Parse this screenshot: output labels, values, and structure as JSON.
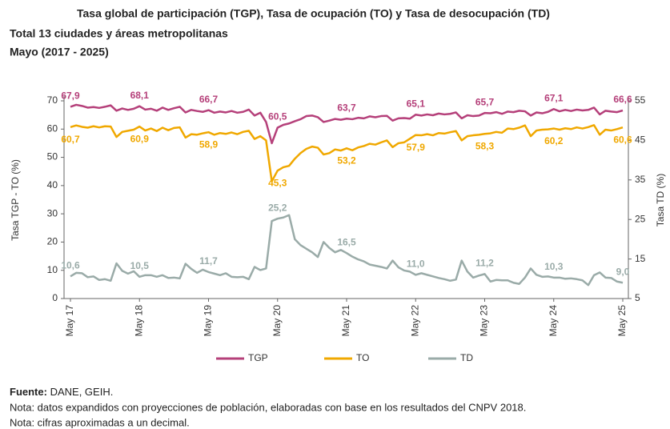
{
  "chart_data": {
    "type": "line",
    "title": "Tasa global de participación (TGP), Tasa de ocupación (TO) y Tasa de desocupación (TD)",
    "subtitle": [
      "Total 13 ciudades y áreas metropolitanas",
      "Mayo (2017 - 2025)"
    ],
    "ylabel": "Tasa TGP - TO (%)",
    "y2label": "Tasa TD (%)",
    "categories": [
      "May 17",
      null,
      null,
      null,
      null,
      null,
      null,
      null,
      null,
      null,
      null,
      null,
      "May 18",
      null,
      null,
      null,
      null,
      null,
      null,
      null,
      null,
      null,
      null,
      null,
      "May 19",
      null,
      null,
      null,
      null,
      null,
      null,
      null,
      null,
      null,
      null,
      null,
      "May 20",
      null,
      null,
      null,
      null,
      null,
      null,
      null,
      null,
      null,
      null,
      null,
      "May 21",
      null,
      null,
      null,
      null,
      null,
      null,
      null,
      null,
      null,
      null,
      null,
      "May 22",
      null,
      null,
      null,
      null,
      null,
      null,
      null,
      null,
      null,
      null,
      null,
      "May 23",
      null,
      null,
      null,
      null,
      null,
      null,
      null,
      null,
      null,
      null,
      null,
      "May 24",
      null,
      null,
      null,
      null,
      null,
      null,
      null,
      null,
      null,
      null,
      null,
      "May 25"
    ],
    "ylim": [
      0,
      70
    ],
    "yticks": [
      0,
      10,
      20,
      30,
      40,
      50,
      60,
      70
    ],
    "y2lim": [
      5,
      55
    ],
    "y2ticks": [
      5,
      15,
      25,
      35,
      45,
      55
    ],
    "grid": false,
    "legend": "bottom",
    "series": [
      {
        "name": "TGP",
        "color": "#b5407a",
        "values": [
          67.9,
          68.6,
          68.2,
          67.6,
          67.8,
          67.5,
          67.9,
          68.4,
          66.5,
          67.3,
          66.8,
          67.2,
          68.1,
          66.9,
          67.2,
          66.5,
          67.6,
          66.8,
          67.4,
          67.9,
          65.9,
          66.8,
          66.4,
          66.1,
          66.7,
          65.8,
          66.2,
          65.9,
          66.4,
          65.8,
          66.1,
          66.9,
          64.8,
          65.8,
          62.5,
          55.0,
          60.5,
          61.5,
          62.0,
          62.8,
          63.5,
          64.6,
          64.8,
          64.2,
          62.5,
          63.0,
          63.6,
          63.3,
          63.7,
          63.5,
          64.0,
          63.8,
          64.5,
          64.2,
          64.6,
          64.7,
          63.0,
          63.8,
          63.9,
          63.7,
          65.1,
          64.8,
          65.2,
          64.9,
          65.5,
          65.2,
          65.4,
          65.9,
          63.8,
          64.9,
          64.6,
          64.8,
          65.7,
          65.6,
          66.0,
          65.4,
          66.2,
          66.0,
          66.5,
          66.3,
          64.8,
          65.9,
          65.6,
          66.1,
          67.1,
          66.3,
          66.8,
          66.4,
          66.9,
          66.6,
          66.8,
          67.6,
          65.2,
          66.5,
          66.2,
          66.0,
          66.6
        ],
        "value_labels": [
          "67,9",
          null,
          null,
          null,
          null,
          null,
          null,
          null,
          null,
          null,
          null,
          null,
          "68,1",
          null,
          null,
          null,
          null,
          null,
          null,
          null,
          null,
          null,
          null,
          null,
          "66,7",
          null,
          null,
          null,
          null,
          null,
          null,
          null,
          null,
          null,
          null,
          null,
          "60,5",
          null,
          null,
          null,
          null,
          null,
          null,
          null,
          null,
          null,
          null,
          null,
          "63,7",
          null,
          null,
          null,
          null,
          null,
          null,
          null,
          null,
          null,
          null,
          null,
          "65,1",
          null,
          null,
          null,
          null,
          null,
          null,
          null,
          null,
          null,
          null,
          null,
          "65,7",
          null,
          null,
          null,
          null,
          null,
          null,
          null,
          null,
          null,
          null,
          null,
          "67,1",
          null,
          null,
          null,
          null,
          null,
          null,
          null,
          null,
          null,
          null,
          null,
          "66,6"
        ]
      },
      {
        "name": "TO",
        "color": "#f0a800",
        "values": [
          60.7,
          61.3,
          60.8,
          60.5,
          61.0,
          60.6,
          61.0,
          60.9,
          57.2,
          59.0,
          59.4,
          59.8,
          60.9,
          59.5,
          60.2,
          59.3,
          60.5,
          59.6,
          60.4,
          60.6,
          57.0,
          58.2,
          58.0,
          58.5,
          58.9,
          58.0,
          58.6,
          58.3,
          58.8,
          58.2,
          59.0,
          59.4,
          56.5,
          57.5,
          56.0,
          41.5,
          45.3,
          46.5,
          47.0,
          49.5,
          51.5,
          53.0,
          53.8,
          53.4,
          51.0,
          51.5,
          52.8,
          52.4,
          53.2,
          52.5,
          53.5,
          54.0,
          54.8,
          54.5,
          55.3,
          56.0,
          53.6,
          55.0,
          55.3,
          56.6,
          57.9,
          57.8,
          58.2,
          57.8,
          58.6,
          58.4,
          58.9,
          59.3,
          56.0,
          57.5,
          57.8,
          58.0,
          58.3,
          58.5,
          59.0,
          58.7,
          60.2,
          60.0,
          60.5,
          61.3,
          57.5,
          59.5,
          59.8,
          59.9,
          60.2,
          59.8,
          60.3,
          60.0,
          60.6,
          60.2,
          60.7,
          61.4,
          58.0,
          59.8,
          59.5,
          60.0,
          60.6
        ],
        "value_labels": [
          "60,7",
          null,
          null,
          null,
          null,
          null,
          null,
          null,
          null,
          null,
          null,
          null,
          "60,9",
          null,
          null,
          null,
          null,
          null,
          null,
          null,
          null,
          null,
          null,
          null,
          "58,9",
          null,
          null,
          null,
          null,
          null,
          null,
          null,
          null,
          null,
          null,
          null,
          "45,3",
          null,
          null,
          null,
          null,
          null,
          null,
          null,
          null,
          null,
          null,
          null,
          "53,2",
          null,
          null,
          null,
          null,
          null,
          null,
          null,
          null,
          null,
          null,
          null,
          "57,9",
          null,
          null,
          null,
          null,
          null,
          null,
          null,
          null,
          null,
          null,
          null,
          "58,3",
          null,
          null,
          null,
          null,
          null,
          null,
          null,
          null,
          null,
          null,
          null,
          "60,2",
          null,
          null,
          null,
          null,
          null,
          null,
          null,
          null,
          null,
          null,
          null,
          "60,6"
        ]
      },
      {
        "name": "TD",
        "color": "#9aaba8",
        "axis": "y2",
        "values": [
          10.6,
          11.5,
          11.4,
          10.4,
          10.6,
          9.7,
          9.9,
          9.5,
          13.9,
          12.0,
          11.3,
          11.9,
          10.5,
          10.9,
          10.9,
          10.5,
          10.9,
          10.2,
          10.3,
          10.1,
          13.8,
          12.5,
          11.5,
          12.3,
          11.7,
          11.3,
          10.9,
          11.4,
          10.5,
          10.4,
          10.5,
          9.9,
          13.0,
          12.2,
          12.6,
          24.6,
          25.2,
          25.5,
          26.1,
          20.0,
          18.5,
          17.6,
          16.7,
          15.5,
          19.3,
          17.8,
          16.7,
          17.3,
          16.5,
          15.6,
          14.9,
          14.4,
          13.6,
          13.3,
          13.0,
          12.6,
          14.6,
          12.9,
          12.1,
          11.8,
          11.0,
          11.4,
          11.0,
          10.6,
          10.2,
          9.9,
          9.5,
          9.8,
          14.6,
          11.8,
          10.3,
          10.8,
          11.2,
          9.3,
          9.7,
          9.6,
          9.6,
          9.0,
          8.7,
          10.3,
          12.6,
          11.0,
          10.5,
          10.6,
          10.3,
          10.3,
          10.0,
          10.1,
          9.9,
          9.6,
          8.4,
          10.9,
          11.6,
          10.3,
          10.2,
          9.3,
          9.0
        ],
        "value_labels": [
          "10,6",
          null,
          null,
          null,
          null,
          null,
          null,
          null,
          null,
          null,
          null,
          null,
          "10,5",
          null,
          null,
          null,
          null,
          null,
          null,
          null,
          null,
          null,
          null,
          null,
          "11,7",
          null,
          null,
          null,
          null,
          null,
          null,
          null,
          null,
          null,
          null,
          null,
          "25,2",
          null,
          null,
          null,
          null,
          null,
          null,
          null,
          null,
          null,
          null,
          null,
          "16,5",
          null,
          null,
          null,
          null,
          null,
          null,
          null,
          null,
          null,
          null,
          null,
          "11,0",
          null,
          null,
          null,
          null,
          null,
          null,
          null,
          null,
          null,
          null,
          null,
          "11,2",
          null,
          null,
          null,
          null,
          null,
          null,
          null,
          null,
          null,
          null,
          null,
          "10,3",
          null,
          null,
          null,
          null,
          null,
          null,
          null,
          null,
          null,
          null,
          null,
          "9,0"
        ]
      }
    ],
    "source_label": "Fuente:",
    "source": "DANE, GEIH.",
    "notes": [
      "Nota: datos expandidos con proyecciones de población, elaboradas con base en los resultados del CNPV 2018.",
      "Nota: cifras aproximadas a un decimal."
    ]
  }
}
